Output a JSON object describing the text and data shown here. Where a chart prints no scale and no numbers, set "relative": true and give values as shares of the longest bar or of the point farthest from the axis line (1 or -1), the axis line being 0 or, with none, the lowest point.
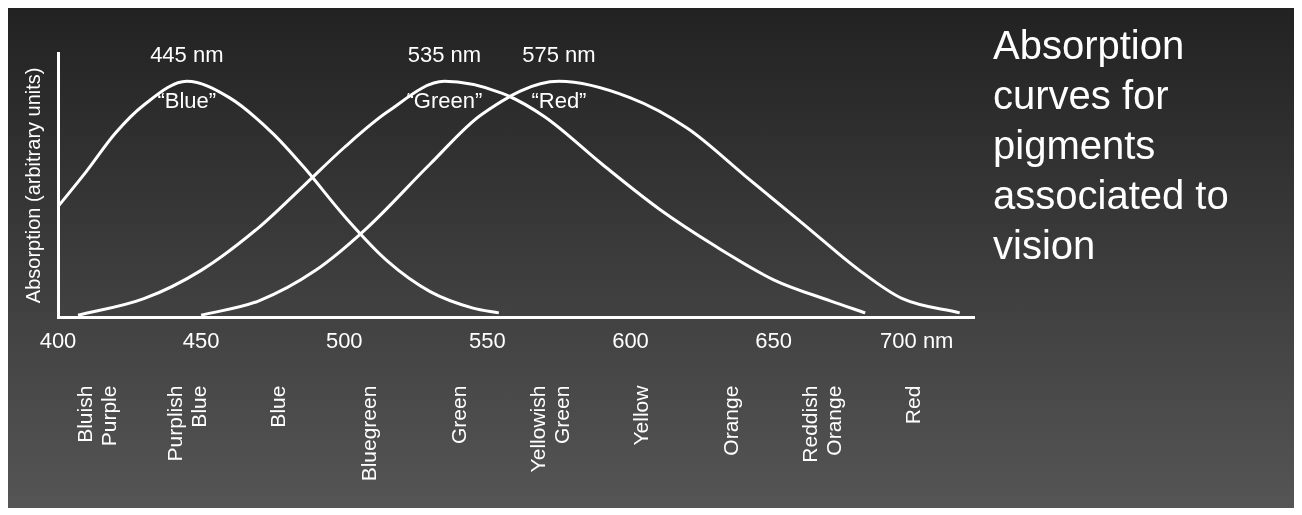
{
  "chart_data": {
    "type": "line",
    "title": "Absorption curves for pigments associated to vision",
    "xlabel": null,
    "ylabel": "Absorption (arbitrary units)",
    "relative": true,
    "xlim": [
      400,
      720
    ],
    "xticks": [
      400,
      450,
      500,
      550,
      600,
      650,
      {
        "value": 700,
        "label": "700 nm"
      }
    ],
    "grid": false,
    "legend": false,
    "marker": "none",
    "line_style": "solid",
    "series": [
      {
        "name": "“Blue”",
        "color": "#ffffff",
        "x": [
          400,
          410,
          420,
          430,
          445,
          460,
          475,
          486,
          500,
          515,
          530,
          545,
          554
        ],
        "values": [
          0.47,
          0.62,
          0.78,
          0.9,
          1.0,
          0.93,
          0.78,
          0.635,
          0.43,
          0.24,
          0.11,
          0.04,
          0.02
        ]
      },
      {
        "name": "“Green”",
        "color": "#ffffff",
        "x": [
          407,
          430,
          450,
          470,
          486,
          500,
          515,
          535,
          555,
          570,
          590,
          610,
          630,
          650,
          670,
          682
        ],
        "values": [
          0.01,
          0.08,
          0.2,
          0.38,
          0.56,
          0.72,
          0.87,
          1.0,
          0.95,
          0.85,
          0.65,
          0.46,
          0.3,
          0.16,
          0.07,
          0.02
        ]
      },
      {
        "name": "“Red”",
        "color": "#ffffff",
        "x": [
          450,
          470,
          490,
          508,
          530,
          548,
          575,
          600,
          620,
          640,
          660,
          680,
          695,
          715
        ],
        "values": [
          0.01,
          0.07,
          0.2,
          0.38,
          0.65,
          0.86,
          1.0,
          0.93,
          0.8,
          0.6,
          0.4,
          0.2,
          0.08,
          0.02
        ]
      }
    ],
    "annotations": [
      {
        "text": "445 nm",
        "x": 445,
        "y": 1.0
      },
      {
        "text": "535 nm",
        "x": 535,
        "y": 1.0
      },
      {
        "text": "575 nm",
        "x": 575,
        "y": 1.0
      },
      "Bluish Purple",
      "Purplish Blue",
      "Blue",
      "Bluegreen",
      "Green",
      "Yellowish Green",
      "Yellow",
      "Orange",
      "Reddish Orange",
      "Red"
    ]
  }
}
